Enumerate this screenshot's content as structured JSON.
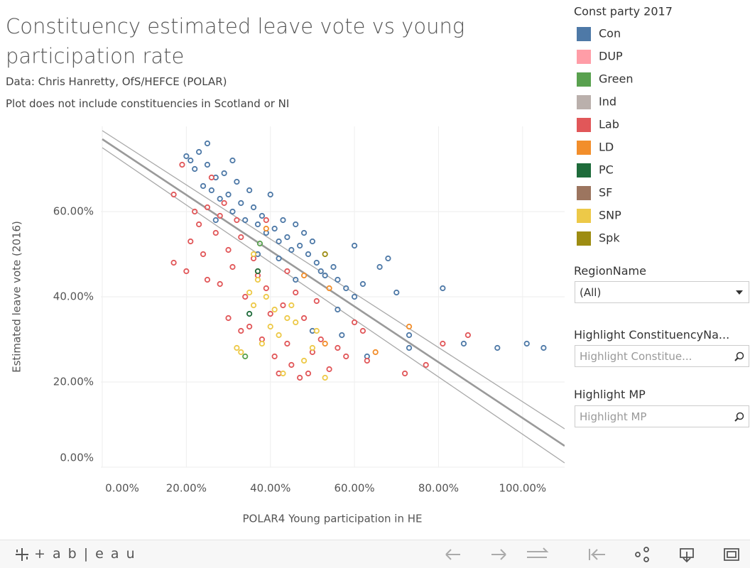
{
  "chart_data": {
    "type": "scatter",
    "title": "Constituency estimated leave vote vs young participation rate",
    "subtitle": [
      "Data: Chris Hanretty, OfS/HEFCE (POLAR)",
      "Plot does not include constituencies in Scotland or NI"
    ],
    "x_label": "POLAR4 Young participation in HE",
    "y_label": "Estimated leave vote (2016)",
    "xlim": [
      0,
      110
    ],
    "ylim": [
      0,
      80
    ],
    "xticks": [
      {
        "value": 0,
        "label": "0.00%"
      },
      {
        "value": 20,
        "label": "20.00%"
      },
      {
        "value": 40,
        "label": "40.00%"
      },
      {
        "value": 60,
        "label": "60.00%"
      },
      {
        "value": 80,
        "label": "80.00%"
      },
      {
        "value": 100,
        "label": "100.00%"
      }
    ],
    "yticks": [
      {
        "value": 0,
        "label": "0.00%"
      },
      {
        "value": 20,
        "label": "20.00%"
      },
      {
        "value": 40,
        "label": "40.00%"
      },
      {
        "value": 60,
        "label": "60.00%"
      }
    ],
    "grid": true,
    "legend_title": "Const party 2017",
    "legend_position": "right",
    "trend_lines": {
      "x": [
        0,
        110
      ],
      "fit": [
        77,
        5
      ],
      "upper": [
        79,
        9
      ],
      "lower": [
        75,
        1
      ]
    },
    "series": [
      {
        "name": "Con",
        "color": "#4e79a7",
        "x": [
          20,
          21,
          22,
          23,
          25,
          24,
          26,
          27,
          28,
          29,
          30,
          31,
          32,
          33,
          34,
          35,
          36,
          37,
          38,
          39,
          40,
          41,
          42,
          43,
          44,
          45,
          46,
          47,
          48,
          49,
          50,
          51,
          52,
          53,
          55,
          56,
          58,
          60,
          62,
          63,
          66,
          68,
          70,
          73,
          73,
          81,
          86,
          94,
          101,
          105,
          25,
          27,
          31,
          37,
          50,
          57,
          56,
          46,
          42,
          60
        ],
        "values": [
          73,
          72,
          70,
          74,
          71,
          66,
          65,
          68,
          63,
          69,
          64,
          60,
          67,
          62,
          58,
          65,
          61,
          57,
          59,
          55,
          64,
          56,
          53,
          58,
          54,
          51,
          57,
          52,
          55,
          50,
          53,
          48,
          46,
          45,
          47,
          44,
          42,
          40,
          43,
          26,
          47,
          49,
          41,
          31,
          28,
          42,
          29,
          28,
          29,
          28,
          76,
          58,
          72,
          50,
          32,
          31,
          37,
          44,
          49,
          52
        ]
      },
      {
        "name": "DUP",
        "color": "#ff9da7",
        "x": [],
        "values": []
      },
      {
        "name": "Green",
        "color": "#59a14f",
        "x": [
          34,
          37.5
        ],
        "values": [
          26,
          52.5
        ]
      },
      {
        "name": "Ind",
        "color": "#bab0ac",
        "x": [],
        "values": []
      },
      {
        "name": "Lab",
        "color": "#e15759",
        "x": [
          17,
          17,
          20,
          19,
          21,
          22,
          23,
          24,
          25,
          26,
          27,
          28,
          29,
          30,
          31,
          32,
          33,
          34,
          35,
          36,
          37,
          38,
          39,
          40,
          41,
          42,
          43,
          44,
          45,
          46,
          47,
          48,
          49,
          50,
          51,
          52,
          54,
          56,
          58,
          60,
          62,
          63,
          72,
          77,
          81,
          87,
          30,
          33,
          28,
          25,
          39,
          44
        ],
        "values": [
          64,
          48,
          46,
          71,
          53,
          60,
          57,
          50,
          44,
          68,
          55,
          43,
          62,
          51,
          47,
          58,
          54,
          40,
          33,
          49,
          45,
          30,
          42,
          36,
          26,
          22,
          38,
          29,
          24,
          41,
          21,
          35,
          22,
          27,
          39,
          30,
          23,
          28,
          26,
          34,
          32,
          25,
          22,
          24,
          29,
          31,
          35,
          32,
          59,
          61,
          58,
          46
        ]
      },
      {
        "name": "LD",
        "color": "#f28e2b",
        "x": [
          39,
          37,
          53,
          54,
          65,
          73,
          48
        ],
        "values": [
          56,
          46,
          29,
          42,
          27,
          33,
          45
        ]
      },
      {
        "name": "PC",
        "color": "#1e6b3a",
        "x": [
          37,
          35
        ],
        "values": [
          46,
          36
        ]
      },
      {
        "name": "SF",
        "color": "#9c755f",
        "x": [],
        "values": []
      },
      {
        "name": "SNP",
        "color": "#edc948",
        "x": [
          33,
          35,
          36,
          37,
          38,
          39,
          40,
          41,
          42,
          43,
          44,
          45,
          46,
          48,
          50,
          51,
          53,
          36,
          32
        ],
        "values": [
          27,
          41,
          38,
          44,
          29,
          40,
          33,
          37,
          31,
          22,
          35,
          38,
          34,
          25,
          28,
          32,
          21,
          50,
          28
        ]
      },
      {
        "name": "Spk",
        "color": "#9d8c12",
        "x": [
          53
        ],
        "values": [
          50
        ]
      }
    ]
  },
  "filters": [
    {
      "label": "RegionName",
      "value": "(All)"
    },
    {
      "label": "Highlight ConstituencyNa...",
      "placeholder": "Highlight Constitue..."
    },
    {
      "label": "Highlight MP",
      "placeholder": "Highlight MP"
    }
  ],
  "toolbar": {
    "logo": "+ a b | e a u"
  }
}
